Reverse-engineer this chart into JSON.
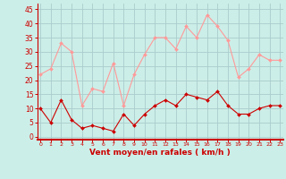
{
  "x": [
    0,
    1,
    2,
    3,
    4,
    5,
    6,
    7,
    8,
    9,
    10,
    11,
    12,
    13,
    14,
    15,
    16,
    17,
    18,
    19,
    20,
    21,
    22,
    23
  ],
  "wind_avg": [
    10,
    5,
    13,
    6,
    3,
    4,
    3,
    2,
    8,
    4,
    8,
    11,
    13,
    11,
    15,
    14,
    13,
    16,
    11,
    8,
    8,
    10,
    11,
    11
  ],
  "wind_gust": [
    22,
    24,
    33,
    30,
    11,
    17,
    16,
    26,
    11,
    22,
    29,
    35,
    35,
    31,
    39,
    35,
    43,
    39,
    34,
    21,
    24,
    29,
    27,
    27
  ],
  "avg_color": "#cc0000",
  "gust_color": "#ff9999",
  "bg_color": "#cceee8",
  "grid_color": "#aacccc",
  "xlabel": "Vent moyen/en rafales ( km/h )",
  "xlabel_color": "#cc0000",
  "ylabel_ticks": [
    0,
    5,
    10,
    15,
    20,
    25,
    30,
    35,
    40,
    45
  ],
  "ylim": [
    -1,
    47
  ],
  "xlim": [
    -0.3,
    23.3
  ],
  "tick_color": "#cc0000",
  "spine_color": "#cc0000",
  "marker": "D",
  "markersize": 2.0,
  "linewidth": 0.8
}
